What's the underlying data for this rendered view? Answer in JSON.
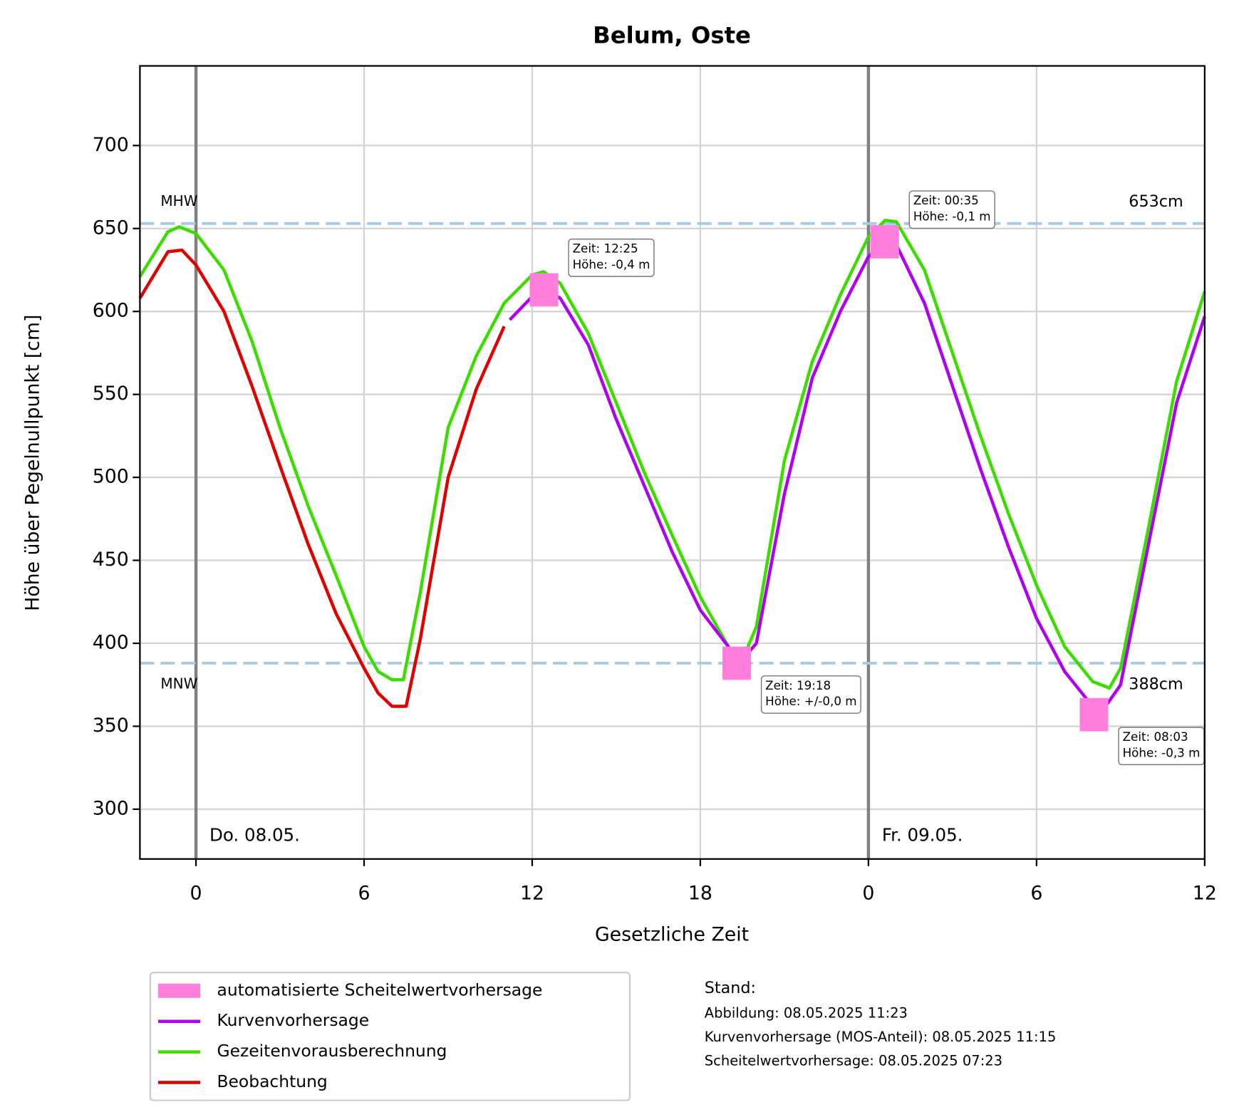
{
  "chart_data": {
    "type": "line",
    "title": "Belum, Oste",
    "x_label": "Gesetzliche Zeit",
    "y_label": "Höhe über Pegelnullpunkt [cm]",
    "xlim": [
      -2,
      36
    ],
    "xticks": [
      0,
      6,
      12,
      18,
      {
        "value": 24,
        "label": "0"
      },
      {
        "value": 30,
        "label": "6"
      },
      {
        "value": 36,
        "label": "12"
      }
    ],
    "ylim": [
      270,
      748
    ],
    "yticks": [
      300,
      350,
      400,
      450,
      500,
      550,
      600,
      650,
      700
    ],
    "grid": true,
    "day_lines": [
      {
        "x": 0,
        "label": "Do. 08.05."
      },
      {
        "x": 24,
        "label": "Fr. 09.05."
      }
    ],
    "reference_lines": [
      {
        "label": "MHW",
        "value": 653,
        "value_label": "653cm"
      },
      {
        "label": "MNW",
        "value": 388,
        "value_label": "388cm"
      }
    ],
    "series": [
      {
        "name": "automatisierte Scheitelwertvorhersage",
        "color": "#ff7fdc",
        "marker": "square",
        "x": [
          12.42,
          19.3,
          24.58,
          32.05
        ],
        "values": [
          613,
          388,
          642,
          357
        ],
        "point_labels": [
          [
            "Zeit: 12:25",
            "Höhe: -0,4 m"
          ],
          [
            "Zeit: 19:18",
            "Höhe: +/-0,0 m"
          ],
          [
            "Zeit: 00:35",
            "Höhe: -0,1 m"
          ],
          [
            "Zeit: 08:03",
            "Höhe: -0,3 m"
          ]
        ]
      },
      {
        "name": "Kurvenvorhersage",
        "color": "#b000f0",
        "x": [
          11.2,
          12,
          12.5,
          13,
          14,
          15,
          16,
          17,
          18,
          19,
          19.5,
          20,
          21,
          22,
          23,
          24,
          24.6,
          25,
          26,
          27,
          28,
          29,
          30,
          31,
          32,
          32.3,
          33,
          34,
          35,
          36
        ],
        "values": [
          595,
          609,
          613,
          608,
          580,
          535,
          495,
          455,
          420,
          398,
          390,
          400,
          490,
          560,
          600,
          633,
          642,
          640,
          605,
          555,
          505,
          458,
          415,
          383,
          362,
          358,
          375,
          460,
          545,
          597
        ]
      },
      {
        "name": "Gezeitenvorausberechnung",
        "color": "#3ddc00",
        "x": [
          -2,
          -1,
          -0.6,
          0,
          1,
          2,
          3,
          4,
          5,
          6,
          6.5,
          7,
          7.4,
          8,
          9,
          10,
          11,
          12,
          12.4,
          13,
          14,
          15,
          16,
          17,
          18,
          19,
          19.5,
          20,
          21,
          22,
          23,
          24,
          24.6,
          25,
          26,
          27,
          28,
          29,
          30,
          31,
          32,
          32.6,
          33,
          34,
          35,
          36
        ],
        "values": [
          621,
          648,
          651,
          647,
          625,
          582,
          530,
          483,
          441,
          398,
          383,
          378,
          378,
          430,
          530,
          573,
          605,
          622,
          624,
          617,
          587,
          545,
          503,
          465,
          428,
          398,
          390,
          410,
          510,
          570,
          610,
          645,
          655,
          654,
          625,
          575,
          525,
          478,
          435,
          398,
          377,
          373,
          385,
          470,
          558,
          612
        ]
      },
      {
        "name": "Beobachtung",
        "color": "#e00000",
        "x": [
          -2,
          -1,
          -0.5,
          0,
          1,
          2,
          3,
          4,
          5,
          6,
          6.5,
          7,
          7.5,
          8,
          9,
          10,
          11
        ],
        "values": [
          608,
          636,
          637,
          628,
          600,
          555,
          507,
          460,
          418,
          385,
          370,
          362,
          362,
          402,
          500,
          553,
          591
        ]
      }
    ],
    "stand": [
      "Stand:",
      "Abbildung: 08.05.2025 11:23",
      "Kurvenvorhersage (MOS-Anteil): 08.05.2025 11:15",
      "Scheitelwertvorhersage: 08.05.2025 07:23"
    ]
  }
}
